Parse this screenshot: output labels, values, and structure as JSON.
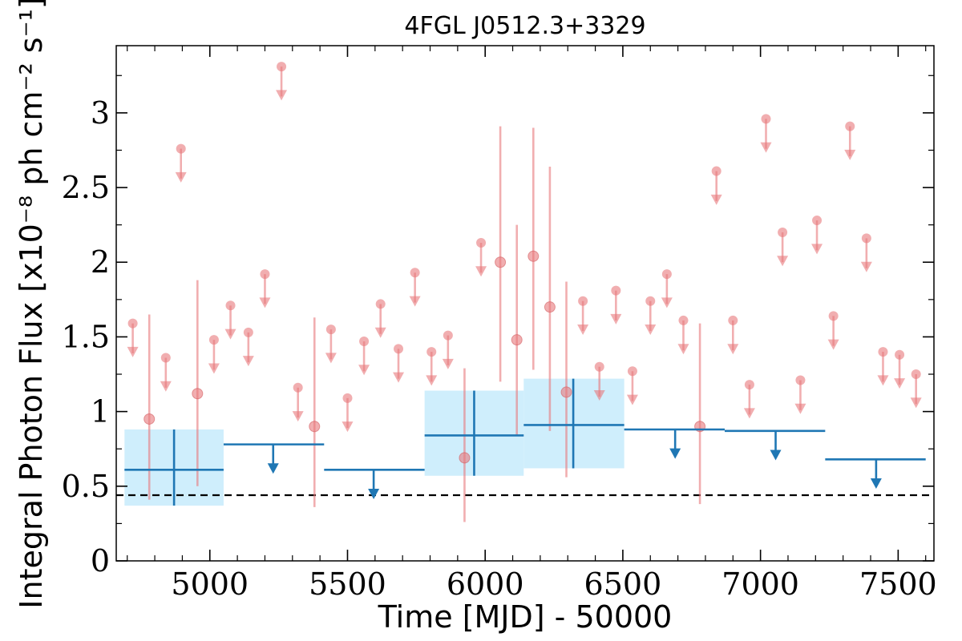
{
  "chart_data": {
    "type": "scatter",
    "title": "4FGL J0512.3+3329",
    "xlabel": "Time [MJD] - 50000",
    "ylabel": "Integral Photon Flux [x10⁻⁸ ph cm⁻² s⁻¹]",
    "xlim": [
      4660,
      7630
    ],
    "ylim": [
      0,
      3.45
    ],
    "x_ticks": [
      5000,
      5500,
      6000,
      6500,
      7000,
      7500
    ],
    "y_ticks": [
      0,
      0.5,
      1,
      1.5,
      2,
      2.5,
      3
    ],
    "y_tick_labels": [
      "0",
      "0.5",
      "1",
      "1.5",
      "2",
      "2.5",
      "3"
    ],
    "reference_line": {
      "y": 0.44,
      "style": "dashed"
    },
    "colors": {
      "fine": "#e8787b",
      "coarse": "#1f77b4",
      "band": "#cfeefc"
    },
    "series": [
      {
        "binning": "fine",
        "detections": [
          {
            "x": 4780,
            "y": 0.95,
            "ylo": 0.41,
            "yhi": 1.65
          },
          {
            "x": 4955,
            "y": 1.12,
            "ylo": 0.5,
            "yhi": 1.88
          },
          {
            "x": 5380,
            "y": 0.9,
            "ylo": 0.36,
            "yhi": 1.63
          },
          {
            "x": 5925,
            "y": 0.69,
            "ylo": 0.26,
            "yhi": 1.29
          },
          {
            "x": 6055,
            "y": 2.0,
            "ylo": 1.2,
            "yhi": 2.91
          },
          {
            "x": 6115,
            "y": 1.48,
            "ylo": 0.84,
            "yhi": 2.25
          },
          {
            "x": 6175,
            "y": 2.04,
            "ylo": 1.28,
            "yhi": 2.9
          },
          {
            "x": 6235,
            "y": 1.7,
            "ylo": 0.87,
            "yhi": 2.64
          },
          {
            "x": 6295,
            "y": 1.13,
            "ylo": 0.56,
            "yhi": 1.87
          },
          {
            "x": 6780,
            "y": 0.9,
            "ylo": 0.38,
            "yhi": 1.59
          }
        ],
        "upper_limits": [
          {
            "x": 4720,
            "y": 1.59
          },
          {
            "x": 4840,
            "y": 1.36
          },
          {
            "x": 4895,
            "y": 2.76
          },
          {
            "x": 5015,
            "y": 1.48
          },
          {
            "x": 5075,
            "y": 1.71
          },
          {
            "x": 5140,
            "y": 1.53
          },
          {
            "x": 5200,
            "y": 1.92
          },
          {
            "x": 5260,
            "y": 3.31
          },
          {
            "x": 5320,
            "y": 1.16
          },
          {
            "x": 5440,
            "y": 1.55
          },
          {
            "x": 5500,
            "y": 1.09
          },
          {
            "x": 5560,
            "y": 1.47
          },
          {
            "x": 5620,
            "y": 1.72
          },
          {
            "x": 5685,
            "y": 1.42
          },
          {
            "x": 5745,
            "y": 1.93
          },
          {
            "x": 5805,
            "y": 1.4
          },
          {
            "x": 5865,
            "y": 1.51
          },
          {
            "x": 5985,
            "y": 2.13
          },
          {
            "x": 6355,
            "y": 1.74
          },
          {
            "x": 6415,
            "y": 1.3
          },
          {
            "x": 6475,
            "y": 1.81
          },
          {
            "x": 6535,
            "y": 1.27
          },
          {
            "x": 6600,
            "y": 1.74
          },
          {
            "x": 6660,
            "y": 1.92
          },
          {
            "x": 6720,
            "y": 1.61
          },
          {
            "x": 6840,
            "y": 2.61
          },
          {
            "x": 6900,
            "y": 1.61
          },
          {
            "x": 6960,
            "y": 1.18
          },
          {
            "x": 7020,
            "y": 2.96
          },
          {
            "x": 7080,
            "y": 2.2
          },
          {
            "x": 7145,
            "y": 1.21
          },
          {
            "x": 7205,
            "y": 2.28
          },
          {
            "x": 7265,
            "y": 1.64
          },
          {
            "x": 7325,
            "y": 2.91
          },
          {
            "x": 7385,
            "y": 2.16
          },
          {
            "x": 7445,
            "y": 1.4
          },
          {
            "x": 7505,
            "y": 1.38
          },
          {
            "x": 7565,
            "y": 1.25
          }
        ]
      },
      {
        "binning": "coarse",
        "detections": [
          {
            "x": 4870,
            "xlo": 4690,
            "xhi": 5050,
            "y": 0.61,
            "ylo": 0.37,
            "yhi": 0.88
          },
          {
            "x": 5960,
            "xlo": 5780,
            "xhi": 6140,
            "y": 0.84,
            "ylo": 0.57,
            "yhi": 1.14
          },
          {
            "x": 6320,
            "xlo": 6140,
            "xhi": 6505,
            "y": 0.91,
            "ylo": 0.62,
            "yhi": 1.22
          }
        ],
        "upper_limits": [
          {
            "x": 5230,
            "xlo": 5050,
            "xhi": 5415,
            "y": 0.78
          },
          {
            "x": 5595,
            "xlo": 5415,
            "xhi": 5780,
            "y": 0.61
          },
          {
            "x": 6690,
            "xlo": 6505,
            "xhi": 6870,
            "y": 0.88
          },
          {
            "x": 7055,
            "xlo": 6870,
            "xhi": 7235,
            "y": 0.87
          },
          {
            "x": 7420,
            "xlo": 7235,
            "xhi": 7600,
            "y": 0.68
          }
        ]
      }
    ]
  }
}
